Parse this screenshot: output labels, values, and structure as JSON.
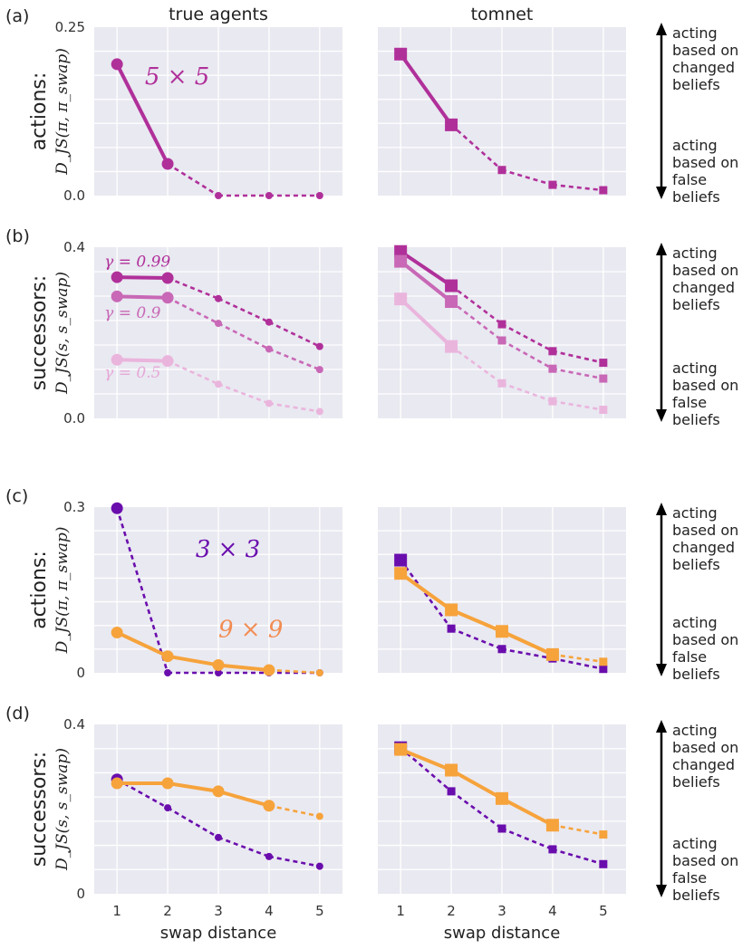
{
  "figure": {
    "column_titles": [
      "true agents",
      "tomnet"
    ],
    "xlabel": "swap distance",
    "x_ticks": [
      "1",
      "2",
      "3",
      "4",
      "5"
    ],
    "arrow_top_lines": [
      "acting",
      "based on",
      "changed",
      "beliefs"
    ],
    "arrow_bottom_lines": [
      "acting",
      "based on",
      "false",
      "beliefs"
    ]
  },
  "rows": [
    {
      "panel_label": "(a)",
      "ylabel_main": "actions:",
      "ylabel_math": "D_JS(π, π_swap)",
      "ytick_top": "0.25",
      "ytick_bottom": "0.0",
      "ylim": [
        0,
        0.25
      ]
    },
    {
      "panel_label": "(b)",
      "ylabel_main": "successors:",
      "ylabel_math": "D_JS(s, s_swap)",
      "ytick_top": "0.4",
      "ytick_bottom": "0.0",
      "ylim": [
        0,
        0.4
      ]
    },
    {
      "panel_label": "(c)",
      "ylabel_main": "actions:",
      "ylabel_math": "D_JS(π, π_swap)",
      "ytick_top": "0.3",
      "ytick_bottom": "0",
      "ylim": [
        0,
        0.3
      ]
    },
    {
      "panel_label": "(d)",
      "ylabel_main": "successors:",
      "ylabel_math": "D_JS(s, s_swap)",
      "ytick_top": "0.4",
      "ytick_bottom": "0",
      "ylim": [
        0,
        0.4
      ]
    }
  ],
  "annotations": [
    {
      "row": 0,
      "col": 0,
      "text": "5 × 5",
      "color": "#b0309a",
      "size": 26,
      "dx": 0.55,
      "dy": 0.165
    },
    {
      "row": 1,
      "col": 0,
      "text": "γ = 0.99",
      "color": "#b0309a",
      "size": 17,
      "dx": -0.25,
      "dy": 0.355
    },
    {
      "row": 1,
      "col": 0,
      "text": "γ = 0.9",
      "color": "#c868b6",
      "size": 17,
      "dx": -0.25,
      "dy": 0.235
    },
    {
      "row": 1,
      "col": 0,
      "text": "γ = 0.5",
      "color": "#e6a8d7",
      "size": 17,
      "dx": -0.25,
      "dy": 0.095
    },
    {
      "row": 2,
      "col": 0,
      "text": "3 × 3",
      "color": "#6a0dad",
      "size": 26,
      "dx": 1.55,
      "dy": 0.21
    },
    {
      "row": 2,
      "col": 0,
      "text": "9 × 9",
      "color": "#f28c52",
      "size": 26,
      "dx": 2.0,
      "dy": 0.065
    }
  ],
  "chart_data": [
    {
      "type": "line",
      "row": 0,
      "col": 0,
      "title": "true agents",
      "ylabel": "actions: D_JS(π, π_swap)",
      "ylim": [
        0,
        0.25
      ],
      "x": [
        1,
        2,
        3,
        4,
        5
      ],
      "marker": "circle",
      "series": [
        {
          "name": "5 × 5",
          "color": "#b0309a",
          "solid_until": 2,
          "values": [
            0.195,
            0.047,
            0.0,
            0.0,
            0.0
          ]
        }
      ]
    },
    {
      "type": "line",
      "row": 0,
      "col": 1,
      "title": "tomnet",
      "ylabel": "",
      "ylim": [
        0,
        0.25
      ],
      "x": [
        1,
        2,
        3,
        4,
        5
      ],
      "marker": "square",
      "series": [
        {
          "name": "5 × 5",
          "color": "#b0309a",
          "solid_until": 2,
          "values": [
            0.21,
            0.105,
            0.038,
            0.016,
            0.008
          ]
        }
      ]
    },
    {
      "type": "line",
      "row": 1,
      "col": 0,
      "title": "",
      "ylabel": "successors: D_JS(s, s_swap)",
      "ylim": [
        0,
        0.4
      ],
      "x": [
        1,
        2,
        3,
        4,
        5
      ],
      "marker": "circle",
      "series": [
        {
          "name": "γ = 0.99",
          "color": "#b0309a",
          "solid_until": 2,
          "values": [
            0.33,
            0.328,
            0.28,
            0.225,
            0.168
          ]
        },
        {
          "name": "γ = 0.9",
          "color": "#c868b6",
          "solid_until": 2,
          "values": [
            0.285,
            0.282,
            0.222,
            0.162,
            0.114
          ]
        },
        {
          "name": "γ = 0.5",
          "color": "#eab5dd",
          "solid_until": 2,
          "values": [
            0.137,
            0.134,
            0.08,
            0.035,
            0.016
          ]
        }
      ]
    },
    {
      "type": "line",
      "row": 1,
      "col": 1,
      "title": "",
      "ylabel": "",
      "ylim": [
        0,
        0.4
      ],
      "x": [
        1,
        2,
        3,
        4,
        5
      ],
      "marker": "square",
      "series": [
        {
          "name": "γ = 0.99",
          "color": "#b0309a",
          "solid_until": 2,
          "values": [
            0.39,
            0.31,
            0.22,
            0.157,
            0.13
          ]
        },
        {
          "name": "γ = 0.9",
          "color": "#c868b6",
          "solid_until": 2,
          "values": [
            0.367,
            0.273,
            0.182,
            0.116,
            0.093
          ]
        },
        {
          "name": "γ = 0.5",
          "color": "#eab5dd",
          "solid_until": 2,
          "values": [
            0.279,
            0.168,
            0.082,
            0.04,
            0.02
          ]
        }
      ]
    },
    {
      "type": "line",
      "row": 2,
      "col": 0,
      "title": "",
      "ylabel": "actions: D_JS(π, π_swap)",
      "ylim": [
        0,
        0.3
      ],
      "x": [
        1,
        2,
        3,
        4,
        5
      ],
      "marker": "circle",
      "series": [
        {
          "name": "3 × 3",
          "color": "#6a0dad",
          "solid_until": 1,
          "values": [
            0.298,
            0.0,
            0.0,
            0.0,
            0.0
          ]
        },
        {
          "name": "9 × 9",
          "color": "#f6a33c",
          "solid_until": 4,
          "values": [
            0.073,
            0.03,
            0.014,
            0.005,
            0.0
          ]
        }
      ]
    },
    {
      "type": "line",
      "row": 2,
      "col": 1,
      "title": "",
      "ylabel": "",
      "ylim": [
        0,
        0.3
      ],
      "x": [
        1,
        2,
        3,
        4,
        5
      ],
      "marker": "square",
      "series": [
        {
          "name": "3 × 3",
          "color": "#6a0dad",
          "solid_until": 1,
          "values": [
            0.204,
            0.08,
            0.043,
            0.026,
            0.007
          ]
        },
        {
          "name": "9 × 9",
          "color": "#f6a33c",
          "solid_until": 4,
          "values": [
            0.18,
            0.114,
            0.075,
            0.033,
            0.02
          ]
        }
      ]
    },
    {
      "type": "line",
      "row": 3,
      "col": 0,
      "title": "",
      "ylabel": "successors: D_JS(s, s_swap)",
      "ylim": [
        0,
        0.4
      ],
      "x": [
        1,
        2,
        3,
        4,
        5
      ],
      "marker": "circle",
      "series": [
        {
          "name": "3 × 3",
          "color": "#6a0dad",
          "solid_until": 1,
          "values": [
            0.27,
            0.203,
            0.133,
            0.088,
            0.065
          ]
        },
        {
          "name": "9 × 9",
          "color": "#f6a33c",
          "solid_until": 4,
          "values": [
            0.261,
            0.261,
            0.242,
            0.208,
            0.183
          ]
        }
      ]
    },
    {
      "type": "line",
      "row": 3,
      "col": 1,
      "title": "",
      "ylabel": "",
      "ylim": [
        0,
        0.4
      ],
      "x": [
        1,
        2,
        3,
        4,
        5
      ],
      "marker": "square",
      "series": [
        {
          "name": "3 × 3",
          "color": "#6a0dad",
          "solid_until": 1,
          "values": [
            0.345,
            0.242,
            0.154,
            0.105,
            0.07
          ]
        },
        {
          "name": "9 × 9",
          "color": "#f6a33c",
          "solid_until": 4,
          "values": [
            0.341,
            0.292,
            0.225,
            0.162,
            0.14
          ]
        }
      ]
    }
  ]
}
